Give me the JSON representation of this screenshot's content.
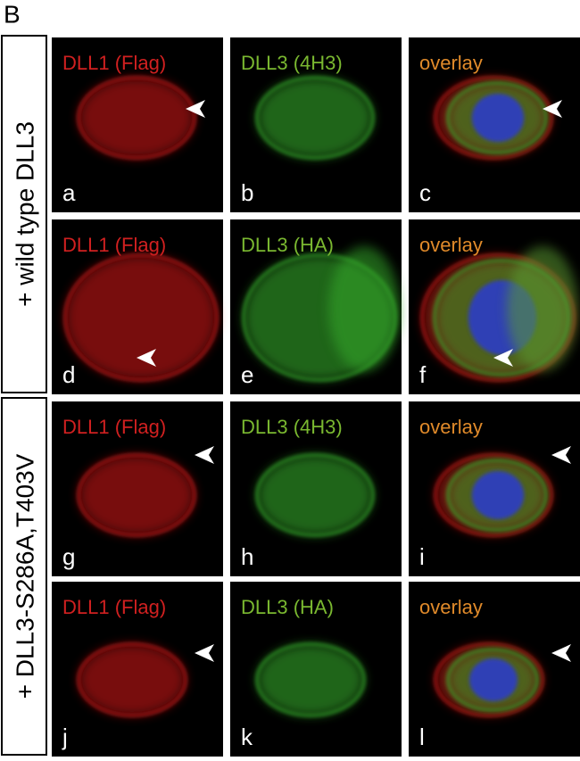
{
  "header": {
    "label": "B"
  },
  "groups": [
    {
      "label": "+ wild type DLL3"
    },
    {
      "label": "+ DLL3-S286A,T403V"
    }
  ],
  "panels": [
    {
      "title": "DLL1 (Flag)",
      "letter": "a"
    },
    {
      "title": "DLL3 (4H3)",
      "letter": "b"
    },
    {
      "title": "overlay",
      "letter": "c"
    },
    {
      "title": "DLL1 (Flag)",
      "letter": "d"
    },
    {
      "title": "DLL3 (HA)",
      "letter": "e"
    },
    {
      "title": "overlay",
      "letter": "f"
    },
    {
      "title": "DLL1 (Flag)",
      "letter": "g"
    },
    {
      "title": "DLL3 (4H3)",
      "letter": "h"
    },
    {
      "title": "overlay",
      "letter": "i"
    },
    {
      "title": "DLL1 (Flag)",
      "letter": "j"
    },
    {
      "title": "DLL3 (HA)",
      "letter": "k"
    },
    {
      "title": "overlay",
      "letter": "l"
    }
  ]
}
